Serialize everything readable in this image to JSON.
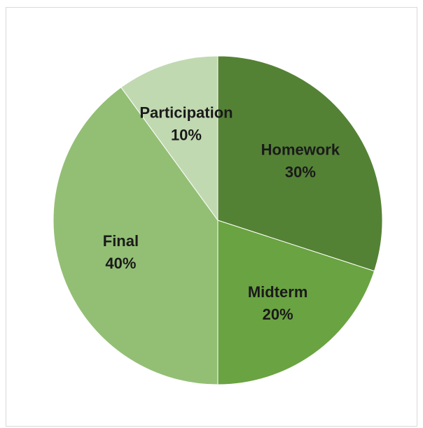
{
  "chart_data": {
    "type": "pie",
    "title": "",
    "slices": [
      {
        "label": "Homework",
        "value": 30,
        "value_label": "30%",
        "color": "#548235"
      },
      {
        "label": "Midterm",
        "value": 20,
        "value_label": "20%",
        "color": "#6aa341"
      },
      {
        "label": "Final",
        "value": 40,
        "value_label": "40%",
        "color": "#93bf75"
      },
      {
        "label": "Participation",
        "value": 10,
        "value_label": "10%",
        "color": "#c1d9b1"
      }
    ],
    "start": "12 o'clock",
    "direction": "clockwise",
    "legend": "none"
  }
}
